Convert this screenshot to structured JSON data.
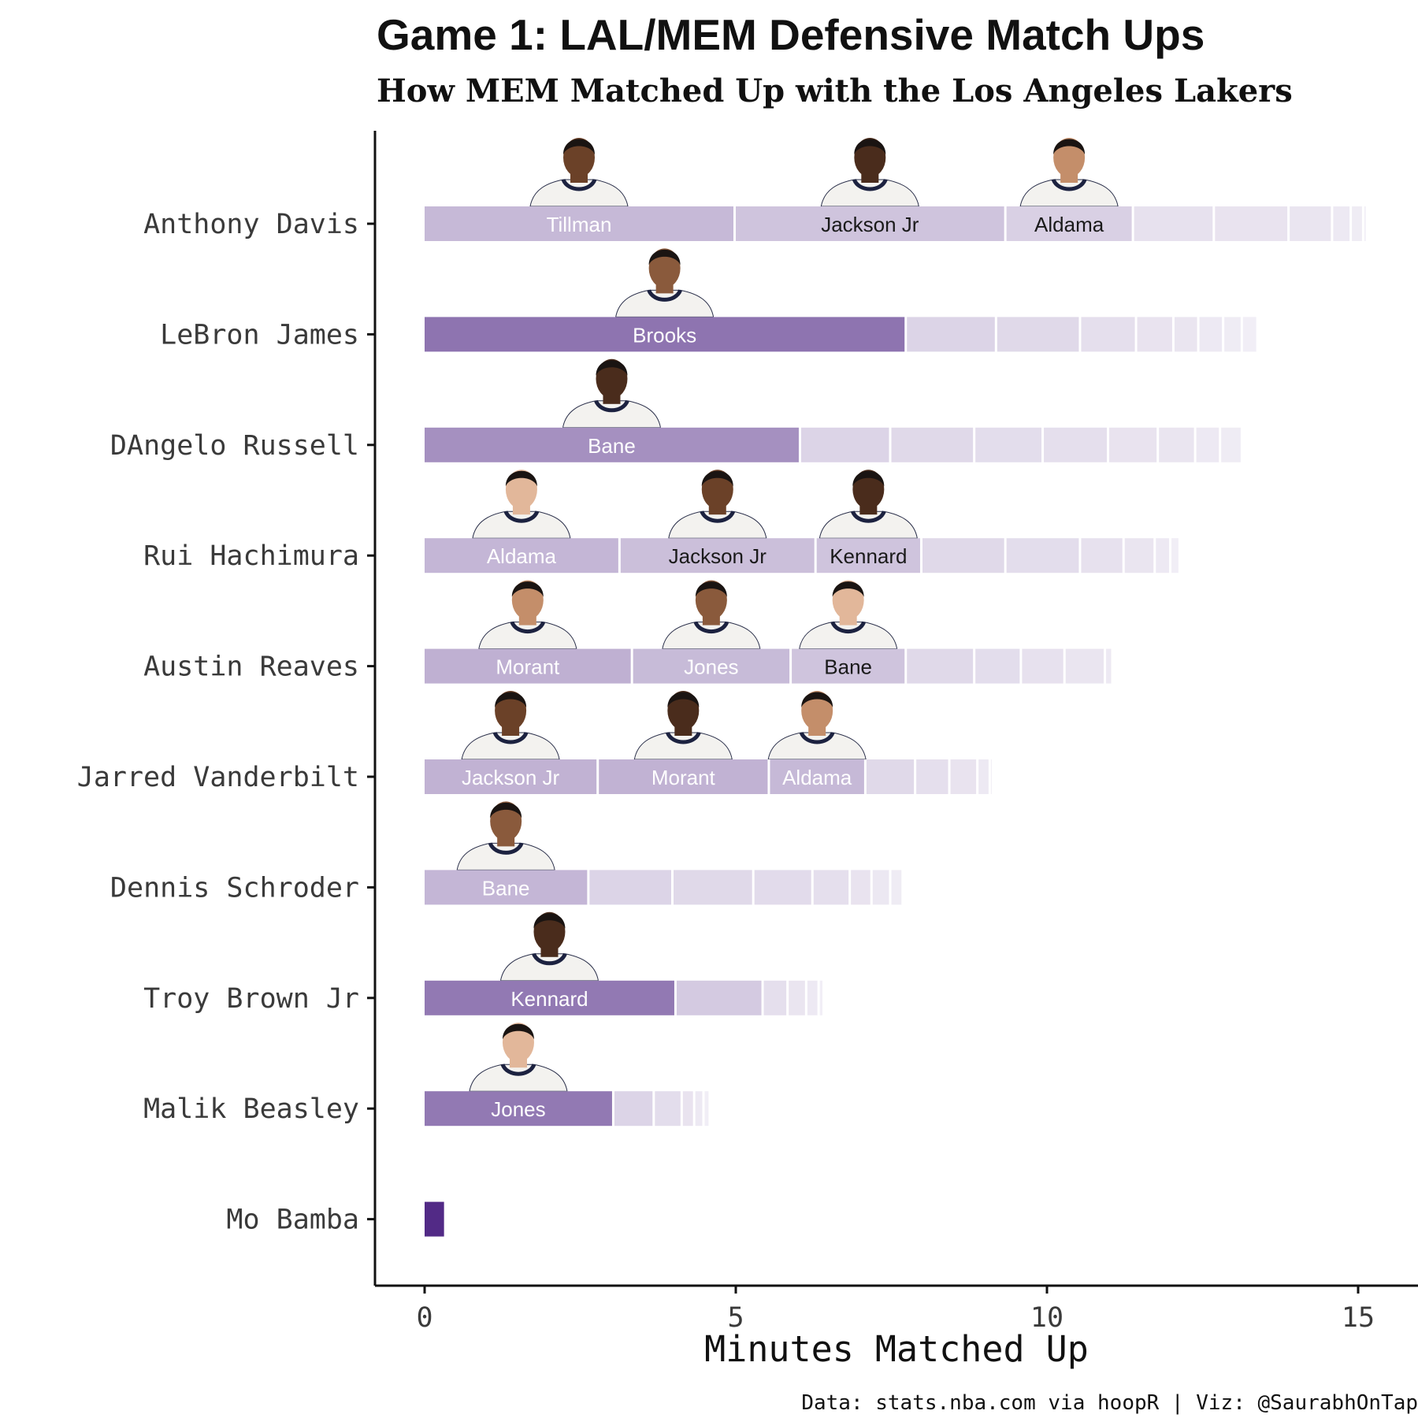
{
  "title": "Game 1: LAL/MEM Defensive Match Ups",
  "subtitle": "How MEM Matched Up with the Los Angeles Lakers",
  "caption": "Data: stats.nba.com via hoopR | Viz: @SaurabhOnTap",
  "colors": {
    "segment_base": "#522a86",
    "background": "#ffffff",
    "axis": "#111111"
  },
  "chart_data": {
    "type": "bar",
    "orientation": "horizontal",
    "stacked": true,
    "title": "Game 1: LAL/MEM Defensive Match Ups",
    "subtitle": "How MEM Matched Up with the Los Angeles Lakers",
    "xlabel": "Minutes Matched Up",
    "ylabel": "",
    "xlim": [
      0,
      15.3
    ],
    "x_ticks": [
      0,
      5,
      10,
      15
    ],
    "grid": false,
    "legend": "none",
    "rows": [
      {
        "player": "Anthony Davis",
        "segments": [
          {
            "defender": "Tillman",
            "minutes": 5.0,
            "share": 0.33,
            "photo": true
          },
          {
            "defender": "Jackson Jr",
            "minutes": 4.35,
            "share": 0.28,
            "photo": true
          },
          {
            "defender": "Aldama",
            "minutes": 2.05,
            "share": 0.22,
            "photo": true
          },
          {
            "defender": "",
            "minutes": 1.3,
            "share": 0.14
          },
          {
            "defender": "",
            "minutes": 1.2,
            "share": 0.13
          },
          {
            "defender": "",
            "minutes": 0.7,
            "share": 0.12
          },
          {
            "defender": "",
            "minutes": 0.3,
            "share": 0.1
          },
          {
            "defender": "",
            "minutes": 0.2,
            "share": 0.09
          },
          {
            "defender": "",
            "minutes": 0.06,
            "share": 0.08
          }
        ]
      },
      {
        "player": "LeBron James",
        "segments": [
          {
            "defender": "Brooks",
            "minutes": 7.75,
            "share": 0.65,
            "photo": true
          },
          {
            "defender": "",
            "minutes": 1.45,
            "share": 0.2
          },
          {
            "defender": "",
            "minutes": 1.35,
            "share": 0.18
          },
          {
            "defender": "",
            "minutes": 0.9,
            "share": 0.15
          },
          {
            "defender": "",
            "minutes": 0.6,
            "share": 0.13
          },
          {
            "defender": "",
            "minutes": 0.4,
            "share": 0.12
          },
          {
            "defender": "",
            "minutes": 0.4,
            "share": 0.1
          },
          {
            "defender": "",
            "minutes": 0.3,
            "share": 0.09
          },
          {
            "defender": "",
            "minutes": 0.25,
            "share": 0.08
          }
        ]
      },
      {
        "player": "DAngelo Russell",
        "segments": [
          {
            "defender": "Bane",
            "minutes": 6.05,
            "share": 0.52,
            "photo": true
          },
          {
            "defender": "",
            "minutes": 1.45,
            "share": 0.2
          },
          {
            "defender": "",
            "minutes": 1.35,
            "share": 0.18
          },
          {
            "defender": "",
            "minutes": 1.1,
            "share": 0.16
          },
          {
            "defender": "",
            "minutes": 1.05,
            "share": 0.15
          },
          {
            "defender": "",
            "minutes": 0.8,
            "share": 0.13
          },
          {
            "defender": "",
            "minutes": 0.6,
            "share": 0.12
          },
          {
            "defender": "",
            "minutes": 0.4,
            "share": 0.1
          },
          {
            "defender": "",
            "minutes": 0.35,
            "share": 0.09
          }
        ]
      },
      {
        "player": "Rui Hachimura",
        "segments": [
          {
            "defender": "Aldama",
            "minutes": 3.15,
            "share": 0.34,
            "photo": true
          },
          {
            "defender": "Jackson Jr",
            "minutes": 3.15,
            "share": 0.3,
            "photo": true
          },
          {
            "defender": "Kennard",
            "minutes": 1.7,
            "share": 0.28,
            "photo": true
          },
          {
            "defender": "",
            "minutes": 1.35,
            "share": 0.18
          },
          {
            "defender": "",
            "minutes": 1.2,
            "share": 0.16
          },
          {
            "defender": "",
            "minutes": 0.7,
            "share": 0.14
          },
          {
            "defender": "",
            "minutes": 0.5,
            "share": 0.12
          },
          {
            "defender": "",
            "minutes": 0.25,
            "share": 0.1
          },
          {
            "defender": "",
            "minutes": 0.15,
            "share": 0.08
          }
        ]
      },
      {
        "player": "Austin Reaves",
        "segments": [
          {
            "defender": "Morant",
            "minutes": 3.35,
            "share": 0.37,
            "photo": true
          },
          {
            "defender": "Jones",
            "minutes": 2.55,
            "share": 0.32,
            "photo": true
          },
          {
            "defender": "Bane",
            "minutes": 1.85,
            "share": 0.28,
            "photo": true
          },
          {
            "defender": "",
            "minutes": 1.1,
            "share": 0.18
          },
          {
            "defender": "",
            "minutes": 0.75,
            "share": 0.16
          },
          {
            "defender": "",
            "minutes": 0.7,
            "share": 0.14
          },
          {
            "defender": "",
            "minutes": 0.65,
            "share": 0.12
          },
          {
            "defender": "",
            "minutes": 0.12,
            "share": 0.1
          }
        ]
      },
      {
        "player": "Jarred Vanderbilt",
        "segments": [
          {
            "defender": "Jackson Jr",
            "minutes": 2.8,
            "share": 0.36,
            "photo": true
          },
          {
            "defender": "Morant",
            "minutes": 2.75,
            "share": 0.36,
            "photo": true
          },
          {
            "defender": "Aldama",
            "minutes": 1.55,
            "share": 0.33,
            "photo": true
          },
          {
            "defender": "",
            "minutes": 0.8,
            "share": 0.18
          },
          {
            "defender": "",
            "minutes": 0.55,
            "share": 0.15
          },
          {
            "defender": "",
            "minutes": 0.45,
            "share": 0.13
          },
          {
            "defender": "",
            "minutes": 0.2,
            "share": 0.1
          },
          {
            "defender": "",
            "minutes": 0.05,
            "share": 0.08
          }
        ]
      },
      {
        "player": "Dennis Schroder",
        "segments": [
          {
            "defender": "Bane",
            "minutes": 2.65,
            "share": 0.34,
            "photo": true
          },
          {
            "defender": "",
            "minutes": 1.35,
            "share": 0.2
          },
          {
            "defender": "",
            "minutes": 1.3,
            "share": 0.18
          },
          {
            "defender": "",
            "minutes": 0.95,
            "share": 0.17
          },
          {
            "defender": "",
            "minutes": 0.6,
            "share": 0.15
          },
          {
            "defender": "",
            "minutes": 0.35,
            "share": 0.13
          },
          {
            "defender": "",
            "minutes": 0.3,
            "share": 0.11
          },
          {
            "defender": "",
            "minutes": 0.2,
            "share": 0.09
          }
        ]
      },
      {
        "player": "Troy Brown Jr",
        "segments": [
          {
            "defender": "Kennard",
            "minutes": 4.05,
            "share": 0.63,
            "photo": true
          },
          {
            "defender": "",
            "minutes": 1.4,
            "share": 0.25
          },
          {
            "defender": "",
            "minutes": 0.4,
            "share": 0.15
          },
          {
            "defender": "",
            "minutes": 0.3,
            "share": 0.12
          },
          {
            "defender": "",
            "minutes": 0.2,
            "share": 0.1
          },
          {
            "defender": "",
            "minutes": 0.08,
            "share": 0.08
          }
        ]
      },
      {
        "player": "Malik Beasley",
        "segments": [
          {
            "defender": "Jones",
            "minutes": 3.05,
            "share": 0.63,
            "photo": true
          },
          {
            "defender": "",
            "minutes": 0.65,
            "share": 0.2
          },
          {
            "defender": "",
            "minutes": 0.45,
            "share": 0.16
          },
          {
            "defender": "",
            "minutes": 0.2,
            "share": 0.13
          },
          {
            "defender": "",
            "minutes": 0.15,
            "share": 0.1
          },
          {
            "defender": "",
            "minutes": 0.1,
            "share": 0.08
          }
        ]
      },
      {
        "player": "Mo Bamba",
        "segments": [
          {
            "defender": "",
            "minutes": 0.35,
            "share": 1.0
          }
        ]
      }
    ]
  }
}
